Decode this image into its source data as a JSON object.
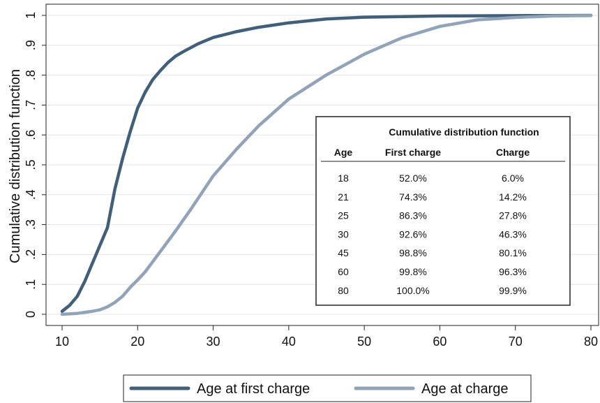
{
  "chart_data": {
    "type": "line",
    "xlabel": "",
    "ylabel": "Cumulative distribution function",
    "xlim": [
      10,
      80
    ],
    "ylim": [
      0,
      1
    ],
    "x_ticks": [
      "10",
      "20",
      "30",
      "40",
      "50",
      "60",
      "70",
      "80"
    ],
    "y_ticks": [
      "0",
      ".1",
      ".2",
      ".3",
      ".4",
      ".5",
      ".6",
      ".7",
      ".8",
      ".9",
      "1"
    ],
    "grid": "horizontal",
    "legend_position": "bottom",
    "series": [
      {
        "name": "Age at first charge",
        "color": "#3f5f7a",
        "x": [
          10,
          11,
          12,
          13,
          14,
          15,
          16,
          17,
          18,
          19,
          20,
          21,
          22,
          23,
          24,
          25,
          26,
          28,
          30,
          33,
          36,
          40,
          45,
          50,
          60,
          70,
          80
        ],
        "y": [
          0.01,
          0.03,
          0.06,
          0.11,
          0.17,
          0.23,
          0.29,
          0.42,
          0.52,
          0.61,
          0.69,
          0.743,
          0.785,
          0.815,
          0.842,
          0.863,
          0.878,
          0.905,
          0.926,
          0.945,
          0.96,
          0.975,
          0.988,
          0.994,
          0.998,
          0.999,
          1.0
        ]
      },
      {
        "name": "Age at charge",
        "color": "#8fa4b8",
        "x": [
          10,
          12,
          14,
          15,
          16,
          17,
          18,
          19,
          20,
          21,
          23,
          25,
          27,
          30,
          33,
          36,
          40,
          45,
          50,
          55,
          60,
          65,
          70,
          75,
          80
        ],
        "y": [
          0.0,
          0.003,
          0.01,
          0.015,
          0.025,
          0.04,
          0.06,
          0.09,
          0.115,
          0.142,
          0.21,
          0.278,
          0.35,
          0.463,
          0.55,
          0.63,
          0.72,
          0.801,
          0.87,
          0.925,
          0.963,
          0.985,
          0.993,
          0.998,
          0.999
        ]
      }
    ],
    "table": {
      "title": "Cumulative distribution function",
      "headers": [
        "Age",
        "First charge",
        "Charge"
      ],
      "rows": [
        [
          "18",
          "52.0%",
          "6.0%"
        ],
        [
          "21",
          "74.3%",
          "14.2%"
        ],
        [
          "25",
          "86.3%",
          "27.8%"
        ],
        [
          "30",
          "92.6%",
          "46.3%"
        ],
        [
          "45",
          "98.8%",
          "80.1%"
        ],
        [
          "60",
          "99.8%",
          "96.3%"
        ],
        [
          "80",
          "100.0%",
          "99.9%"
        ]
      ]
    }
  }
}
